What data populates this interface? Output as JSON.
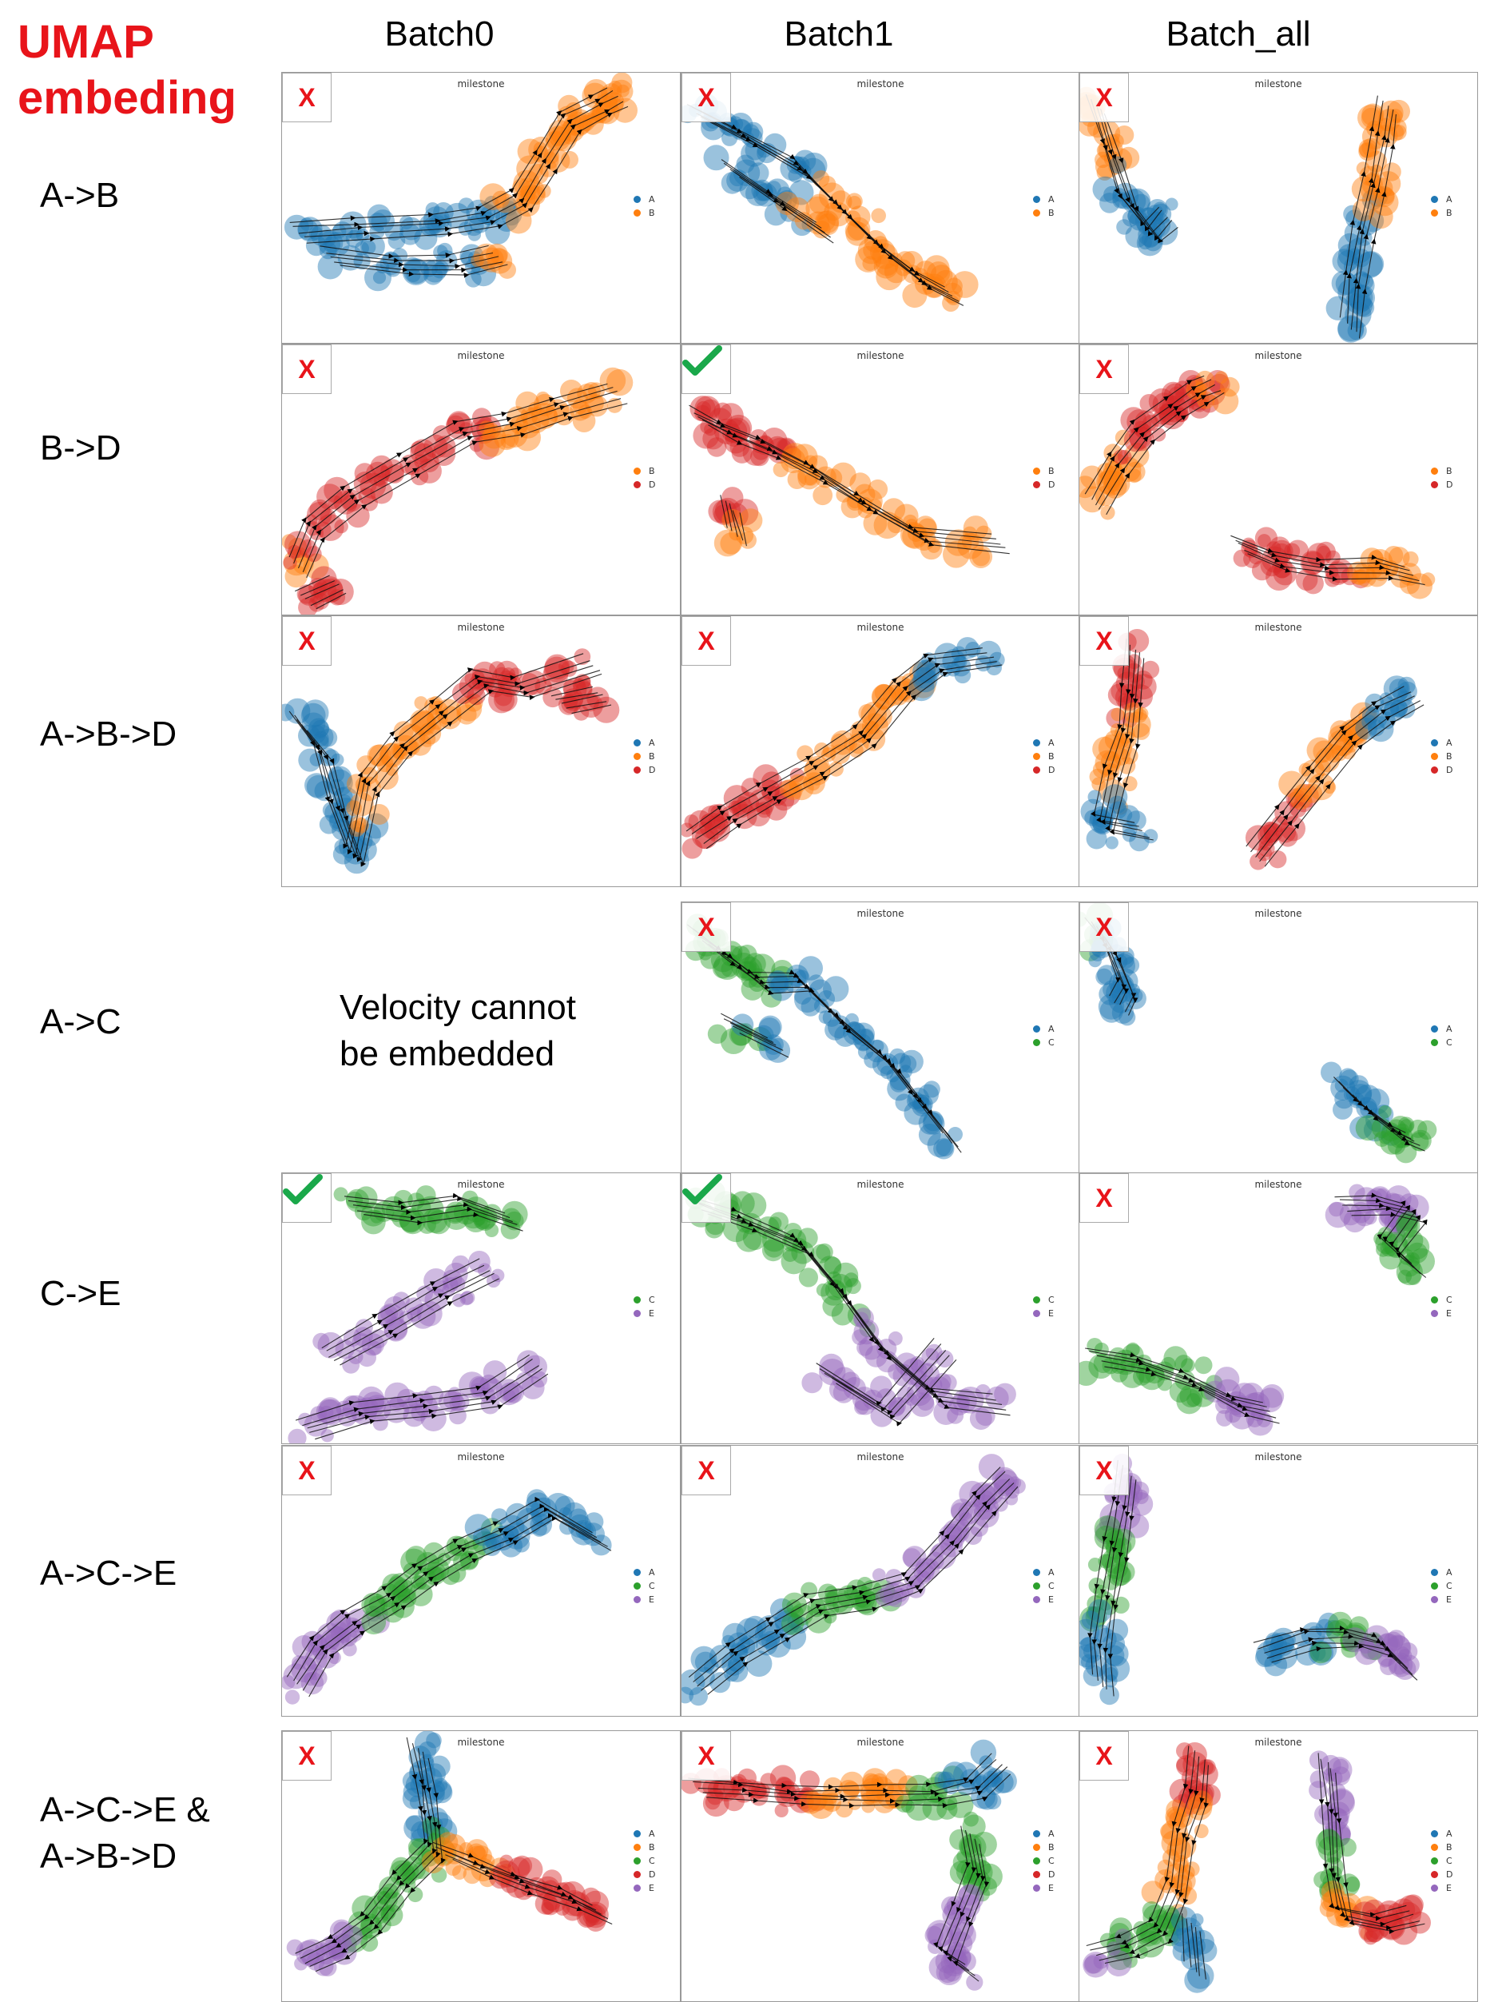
{
  "title_line1": "UMAP",
  "title_line2": "embeding",
  "columns": [
    "Batch0",
    "Batch1",
    "Batch_all"
  ],
  "panel_title": "milestone",
  "colors": {
    "A": "#1f77b4",
    "B": "#ff7f0e",
    "C": "#2ca02c",
    "D": "#d62728",
    "E": "#9467bd",
    "mark_cross": "#e8141a",
    "mark_check": "#1aa84a"
  },
  "rows": [
    {
      "label": "A->B",
      "legend": [
        "A",
        "B"
      ],
      "marks": [
        "cross",
        "cross",
        "cross"
      ]
    },
    {
      "label": "B->D",
      "legend": [
        "B",
        "D"
      ],
      "marks": [
        "cross",
        "check",
        "cross"
      ]
    },
    {
      "label": "A->B->D",
      "legend": [
        "A",
        "B",
        "D"
      ],
      "marks": [
        "cross",
        "cross",
        "cross"
      ]
    },
    {
      "label": "A->C",
      "legend": [
        "A",
        "C"
      ],
      "marks": [
        null,
        "cross",
        "cross"
      ],
      "batch0_message": [
        "Velocity cannot",
        "be  embedded"
      ]
    },
    {
      "label": "C->E",
      "legend": [
        "C",
        "E"
      ],
      "marks": [
        "check",
        "check",
        "cross"
      ]
    },
    {
      "label": "A->C->E",
      "legend": [
        "A",
        "C",
        "E"
      ],
      "marks": [
        "cross",
        "cross",
        "cross"
      ]
    },
    {
      "label_lines": [
        "A->C->E &",
        "A->B->D"
      ],
      "legend": [
        "A",
        "B",
        "C",
        "D",
        "E"
      ],
      "marks": [
        "cross",
        "cross",
        "cross"
      ]
    }
  ],
  "cross_text": "X"
}
